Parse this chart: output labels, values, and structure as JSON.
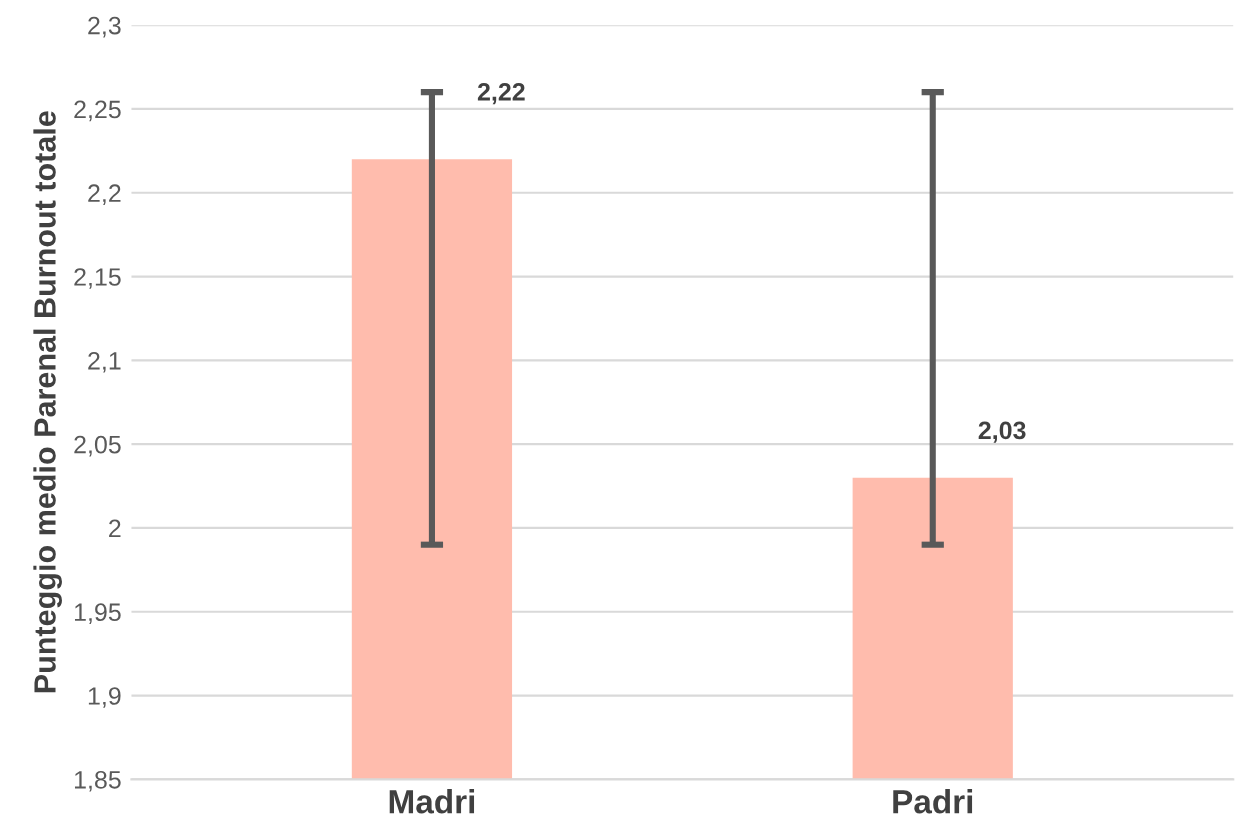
{
  "chart_data": {
    "type": "bar",
    "ylabel": "Punteggio medio Parenal Burnout totale",
    "categories": [
      "Madri",
      "Padri"
    ],
    "values": [
      2.22,
      2.03
    ],
    "errors": [
      [
        1.99,
        2.26
      ],
      [
        1.99,
        2.26
      ]
    ],
    "value_labels": [
      "2,22",
      "2,03"
    ],
    "color": "#ffbcad",
    "ylim": [
      1.85,
      2.3
    ],
    "yticks": [
      {
        "value": 1.85,
        "label": "1,85"
      },
      {
        "value": 1.9,
        "label": "1,9"
      },
      {
        "value": 1.95,
        "label": "1,95"
      },
      {
        "value": 2,
        "label": "2"
      },
      {
        "value": 2.05,
        "label": "2,05"
      },
      {
        "value": 2.1,
        "label": "2,1"
      },
      {
        "value": 2.15,
        "label": "2,15"
      },
      {
        "value": 2.2,
        "label": "2,2"
      },
      {
        "value": 2.25,
        "label": "2,25"
      },
      {
        "value": 2.3,
        "label": "2,3"
      }
    ],
    "grid": "y"
  }
}
